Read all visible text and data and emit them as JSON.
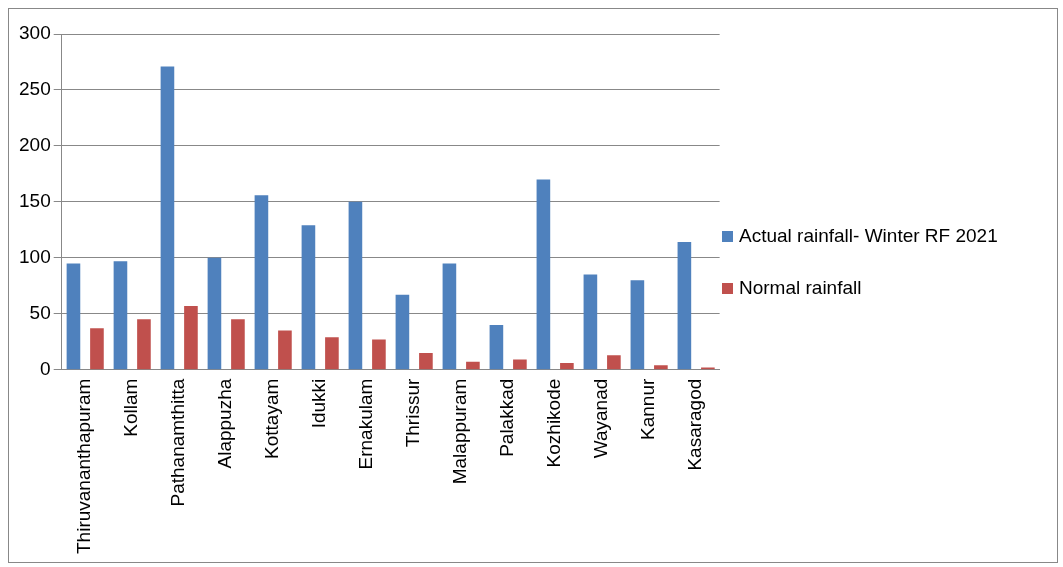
{
  "chart_data": {
    "type": "bar",
    "categories": [
      "Thiruvananthapuram",
      "Kollam",
      "Pathanamthitta",
      "Alappuzha",
      "Kottayam",
      "Idukki",
      "Ernakulam",
      "Thrissur",
      "Malappuram",
      "Palakkad",
      "Kozhikode",
      "Wayanad",
      "Kannur",
      "Kasaragod"
    ],
    "series": [
      {
        "name": "Actual rainfall- Winter RF 2021",
        "color": "#4f81bd",
        "values": [
          95,
          97,
          271,
          100,
          156,
          129,
          150,
          67,
          95,
          40,
          170,
          85,
          80,
          114
        ]
      },
      {
        "name": "Normal rainfall",
        "color": "#c0504d",
        "values": [
          37,
          45,
          57,
          45,
          35,
          29,
          27,
          15,
          7,
          9,
          6,
          13,
          4,
          2
        ]
      }
    ],
    "ylim": [
      0,
      300
    ],
    "yticks": [
      0,
      50,
      100,
      150,
      200,
      250,
      300
    ],
    "grid": "y",
    "legend": "right"
  }
}
